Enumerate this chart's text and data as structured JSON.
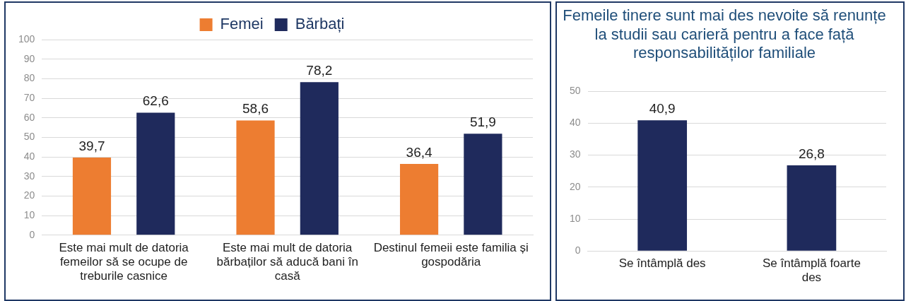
{
  "chart_data": [
    {
      "type": "bar",
      "categories": [
        "Este mai mult de datoria femeilor să se ocupe de treburile casnice",
        "Este mai mult de datoria bărbaților să aducă bani în casă",
        "Destinul femeii este familia și gospodăria"
      ],
      "series": [
        {
          "name": "Femei",
          "color": "#ed7d31",
          "values": [
            39.7,
            58.6,
            36.4
          ],
          "value_labels": [
            "39,7",
            "58,6",
            "36,4"
          ]
        },
        {
          "name": "Bărbați",
          "color": "#1f2a5c",
          "values": [
            62.6,
            78.2,
            51.9
          ],
          "value_labels": [
            "62,6",
            "78,2",
            "51,9"
          ]
        }
      ],
      "ylim": [
        0,
        100
      ],
      "yticks": [
        0,
        10,
        20,
        30,
        40,
        50,
        60,
        70,
        80,
        90,
        100
      ],
      "grid": "y",
      "legend": "top"
    },
    {
      "type": "bar",
      "title": "Femeile tinere sunt mai des nevoite să renunțe la studii sau carieră pentru a face față responsabilităților familiale",
      "categories": [
        "Se întâmplă des",
        "Se întâmplă foarte des"
      ],
      "series": [
        {
          "color": "#1f2a5c",
          "values": [
            40.9,
            26.8
          ],
          "value_labels": [
            "40,9",
            "26,8"
          ]
        }
      ],
      "ylim": [
        0,
        50
      ],
      "yticks": [
        0,
        10,
        20,
        30,
        40,
        50
      ],
      "grid": "y"
    }
  ]
}
